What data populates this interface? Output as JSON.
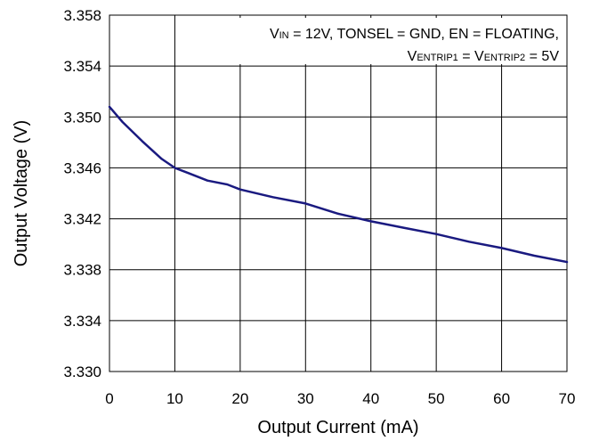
{
  "chart_data": {
    "type": "line",
    "title": "",
    "xlabel": "Output Current (mA)",
    "ylabel": "Output Voltage (V)",
    "xlim": [
      0,
      70
    ],
    "ylim": [
      3.33,
      3.358
    ],
    "x_ticks": [
      "0",
      "10",
      "20",
      "30",
      "40",
      "50",
      "60",
      "70"
    ],
    "y_ticks": [
      "3.330",
      "3.334",
      "3.338",
      "3.342",
      "3.346",
      "3.350",
      "3.354",
      "3.358"
    ],
    "grid": true,
    "annotation": {
      "line1": {
        "v": "V",
        "sub": "IN",
        "rest": " = 12V, TONSEL = GND, EN = FLOATING,"
      },
      "line2": {
        "v1": "V",
        "sub1": "ENTRIP1",
        "mid": " = V",
        "sub2": "ENTRIP2",
        "rest": " = 5V"
      }
    },
    "series": [
      {
        "color": "#1a1a80",
        "x": [
          0,
          2,
          5,
          8,
          10,
          12,
          15,
          18,
          20,
          25,
          30,
          35,
          40,
          45,
          50,
          55,
          60,
          65,
          70
        ],
        "y": [
          3.3508,
          3.3496,
          3.3481,
          3.3467,
          3.346,
          3.3456,
          3.345,
          3.3447,
          3.3443,
          3.3437,
          3.3432,
          3.3424,
          3.3418,
          3.3413,
          3.3408,
          3.3402,
          3.3397,
          3.3391,
          3.3386
        ]
      }
    ]
  }
}
